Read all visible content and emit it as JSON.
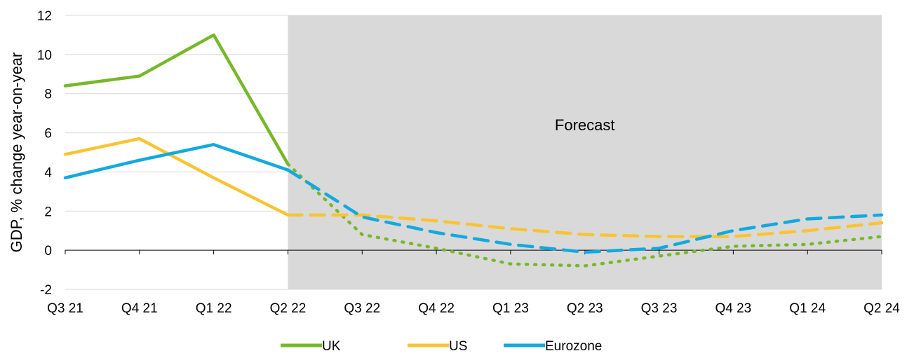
{
  "chart_data": {
    "type": "line",
    "title": "",
    "xlabel": "",
    "ylabel": "GDP, % change year-on-year",
    "ylim": [
      -2,
      12
    ],
    "yticks": [
      -2,
      0,
      2,
      4,
      6,
      8,
      10,
      12
    ],
    "grid": "horizontal",
    "legend_position": "bottom",
    "categories": [
      "Q3 21",
      "Q4 21",
      "Q1 22",
      "Q2 22",
      "Q3 22",
      "Q4 22",
      "Q1 23",
      "Q2 23",
      "Q3 23",
      "Q4 23",
      "Q1 24",
      "Q2 24"
    ],
    "forecast_start": "Q2 22",
    "forecast_end": "Q2 24",
    "forecast_label": "Forecast",
    "forecast_shade_color": "#d9d9d9",
    "series": [
      {
        "name": "UK",
        "color": "#77b82a",
        "forecast_style": "dotted",
        "values": [
          8.4,
          8.9,
          11.0,
          4.4,
          0.8,
          0.1,
          -0.7,
          -0.8,
          -0.3,
          0.2,
          0.3,
          0.7
        ]
      },
      {
        "name": "US",
        "color": "#f9c433",
        "forecast_style": "dashed",
        "values": [
          4.9,
          5.7,
          3.7,
          1.8,
          1.8,
          1.5,
          1.1,
          0.8,
          0.7,
          0.7,
          1.0,
          1.4
        ]
      },
      {
        "name": "Eurozone",
        "color": "#12a9de",
        "forecast_style": "dashed",
        "values": [
          3.7,
          4.6,
          5.4,
          4.1,
          1.7,
          0.9,
          0.3,
          -0.1,
          0.1,
          1.0,
          1.6,
          1.8
        ]
      }
    ]
  }
}
